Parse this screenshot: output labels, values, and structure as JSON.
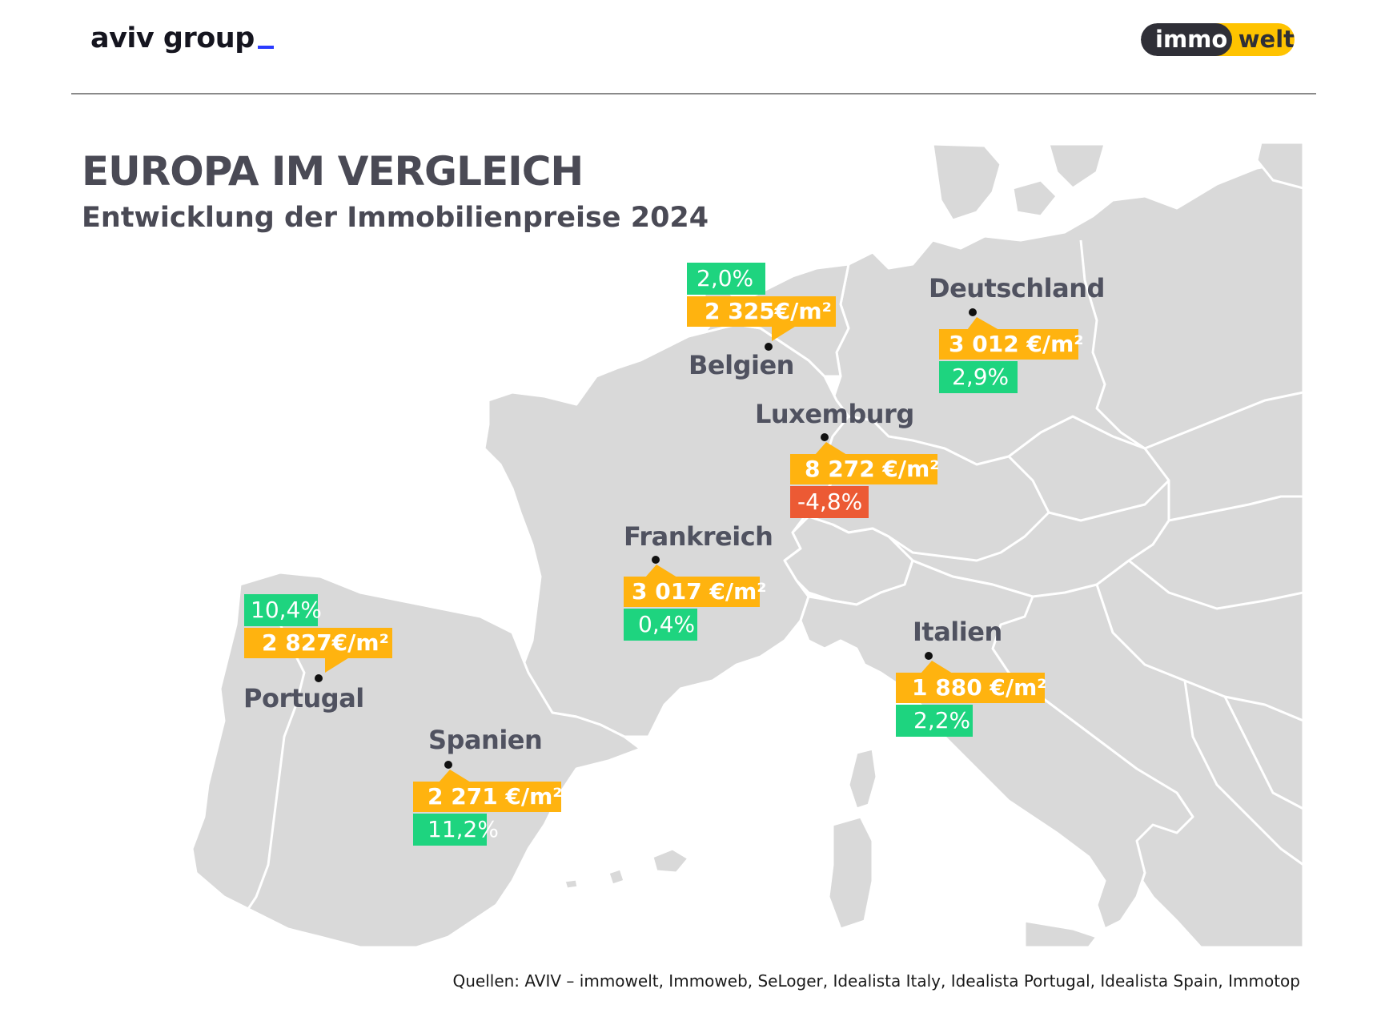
{
  "header": {
    "brand_left": "aviv group",
    "brand_right_a": "immo",
    "brand_right_b": "welt"
  },
  "title": "EUROPA IM VERGLEICH",
  "subtitle": "Entwicklung der Immobilienpreise 2024",
  "colors": {
    "price_bg": "#ffb30f",
    "change_positive_bg": "#1ed47f",
    "change_negative_bg": "#ec5a34",
    "land": "#d9d9d9",
    "border_lines": "#ffffff",
    "accent_underscore": "#2a3bff"
  },
  "countries": [
    {
      "name": "Belgien",
      "price": "2 325€/m²",
      "change": "2,0%",
      "change_sign": "positive"
    },
    {
      "name": "Deutschland",
      "price": "3 012 €/m²",
      "change": "2,9%",
      "change_sign": "positive"
    },
    {
      "name": "Luxemburg",
      "price": "8 272 €/m²",
      "change": "-4,8%",
      "change_sign": "negative"
    },
    {
      "name": "Frankreich",
      "price": "3 017 €/m²",
      "change": "0,4%",
      "change_sign": "positive"
    },
    {
      "name": "Italien",
      "price": "1 880 €/m²",
      "change": "2,2%",
      "change_sign": "positive"
    },
    {
      "name": "Portugal",
      "price": "2 827€/m²",
      "change": "10,4%",
      "change_sign": "positive"
    },
    {
      "name": "Spanien",
      "price": "2 271 €/m²",
      "change": "11,2%",
      "change_sign": "positive"
    }
  ],
  "source": "Quellen: AVIV – immowelt, Immoweb, SeLoger, Idealista Italy, Idealista Portugal, Idealista Spain, Immotop"
}
